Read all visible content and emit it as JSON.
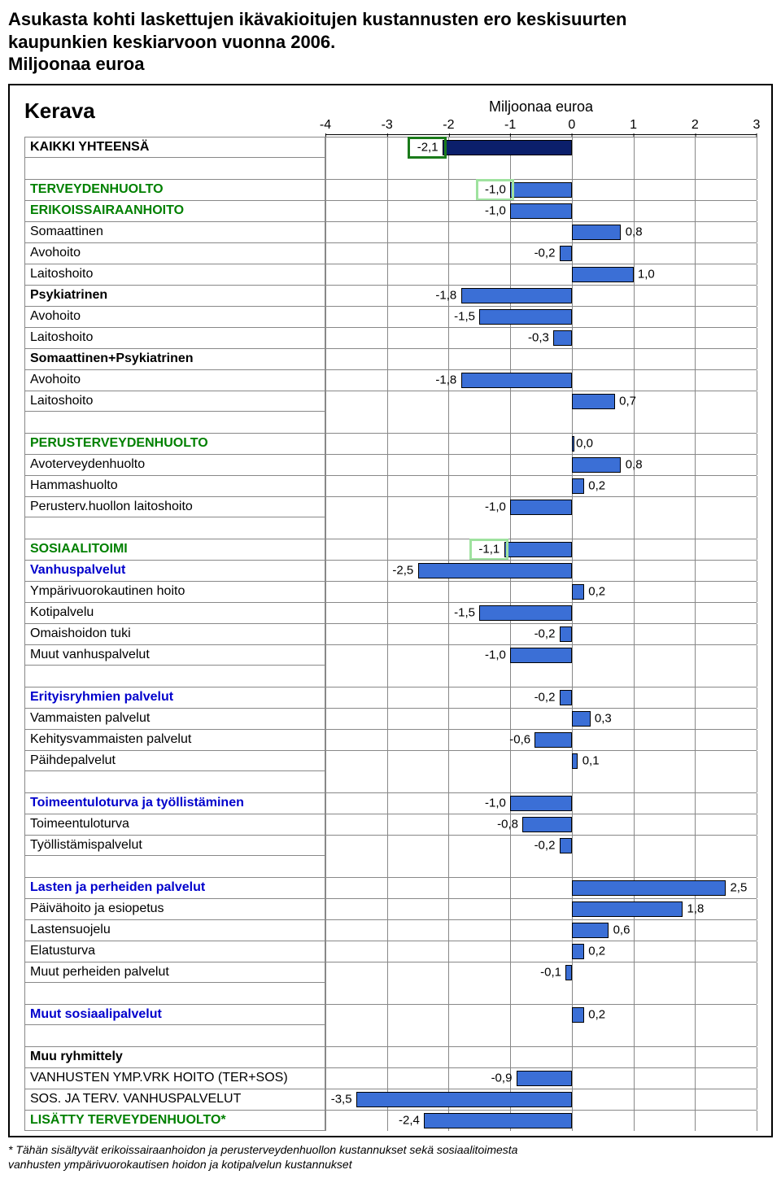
{
  "title_line1": "Asukasta kohti laskettujen ikävakioitujen kustannusten ero keskisuurten",
  "title_line2": "kaupunkien keskiarvoon vuonna 2006.",
  "title_line3": "Miljoonaa euroa",
  "city": "Kerava",
  "axis_title": "Miljoonaa euroa",
  "axis": {
    "min": -4,
    "max": 3,
    "ticks": [
      -4,
      -3,
      -2,
      -1,
      0,
      1,
      2,
      3
    ]
  },
  "colors": {
    "bar_fill": "#3b6fd6",
    "bar_fill_dark": "#0b1f6b",
    "grid": "#888888",
    "highlight_heavy": "#1a7a1a",
    "highlight_light": "#9fe29f"
  },
  "footnote_l1": "* Tähän sisältyvät erikoissairaanhoidon ja perusterveydenhuollon kustannukset sekä sosiaalitoimesta",
  "footnote_l2": "vanhusten ympärivuorokautisen hoidon ja kotipalvelun kustannukset",
  "rows": [
    {
      "label": "KAIKKI YHTEENSÄ",
      "style": "bold",
      "value": -2.1,
      "dark": true,
      "highlight": "heavy",
      "last": true
    },
    {
      "spacer": true
    },
    {
      "label": "TERVEYDENHUOLTO",
      "style": "green",
      "value": -1.0,
      "highlight": "light"
    },
    {
      "label": "ERIKOISSAIRAANHOITO",
      "style": "green",
      "value": -1.0
    },
    {
      "label": "Somaattinen",
      "value": 0.8
    },
    {
      "label": "Avohoito",
      "value": -0.2
    },
    {
      "label": "Laitoshoito",
      "value": 1.0
    },
    {
      "label": "Psykiatrinen",
      "style": "bold",
      "value": -1.8
    },
    {
      "label": "Avohoito",
      "value": -1.5
    },
    {
      "label": "Laitoshoito",
      "value": -0.3
    },
    {
      "label": "Somaattinen+Psykiatrinen",
      "style": "bold",
      "value": null
    },
    {
      "label": "Avohoito",
      "value": -1.8
    },
    {
      "label": "Laitoshoito",
      "value": 0.7,
      "last": true
    },
    {
      "spacer": true
    },
    {
      "label": "PERUSTERVEYDENHUOLTO",
      "style": "green",
      "value": 0.0
    },
    {
      "label": "Avoterveydenhuolto",
      "value": 0.8
    },
    {
      "label": "Hammashuolto",
      "value": 0.2
    },
    {
      "label": "Perusterv.huollon laitoshoito",
      "value": -1.0,
      "last": true
    },
    {
      "spacer": true
    },
    {
      "label": "SOSIAALITOIMI",
      "style": "green",
      "value": -1.1,
      "highlight": "light"
    },
    {
      "label": "Vanhuspalvelut",
      "style": "blue",
      "value": -2.5
    },
    {
      "label": "Ympärivuorokautinen hoito",
      "value": 0.2
    },
    {
      "label": "Kotipalvelu",
      "value": -1.5
    },
    {
      "label": "Omaishoidon tuki",
      "value": -0.2
    },
    {
      "label": "Muut vanhuspalvelut",
      "value": -1.0,
      "last": true
    },
    {
      "spacer": true
    },
    {
      "label": "Erityisryhmien palvelut",
      "style": "blue",
      "value": -0.2
    },
    {
      "label": "Vammaisten palvelut",
      "value": 0.3
    },
    {
      "label": "Kehitysvammaisten palvelut",
      "value": -0.6
    },
    {
      "label": "Päihdepalvelut",
      "value": 0.1,
      "last": true
    },
    {
      "spacer": true
    },
    {
      "label": "Toimeentuloturva ja työllistäminen",
      "style": "blue",
      "value": -1.0
    },
    {
      "label": "Toimeentuloturva",
      "value": -0.8
    },
    {
      "label": "Työllistämispalvelut",
      "value": -0.2,
      "last": true
    },
    {
      "spacer": true
    },
    {
      "label": "Lasten ja perheiden palvelut",
      "style": "blue",
      "value": 2.5
    },
    {
      "label": "Päivähoito ja esiopetus",
      "value": 1.8
    },
    {
      "label": "Lastensuojelu",
      "value": 0.6
    },
    {
      "label": "Elatusturva",
      "value": 0.2
    },
    {
      "label": "Muut perheiden palvelut",
      "value": -0.1,
      "last": true
    },
    {
      "spacer": true
    },
    {
      "label": "Muut sosiaalipalvelut",
      "style": "blue",
      "value": 0.2,
      "last": true
    },
    {
      "spacer": true
    },
    {
      "label": "Muu ryhmittely",
      "style": "bold",
      "value": null
    },
    {
      "label": "VANHUSTEN YMP.VRK HOITO (TER+SOS)",
      "value": -0.9
    },
    {
      "label": "SOS. JA TERV. VANHUSPALVELUT",
      "value": -3.5
    },
    {
      "label": "LISÄTTY TERVEYDENHUOLTO*",
      "style": "green",
      "value": -2.4,
      "last": true
    }
  ]
}
